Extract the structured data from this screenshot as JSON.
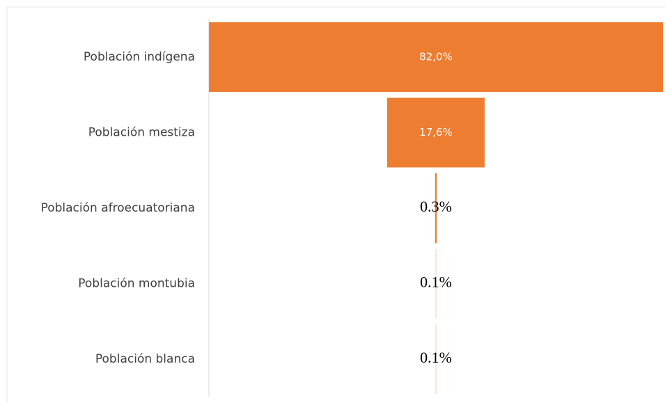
{
  "chart_data": {
    "type": "funnel",
    "categories": [
      "Población indígena",
      "Población mestiza",
      "Población afroecuatoriana",
      "Población montubia",
      "Población blanca"
    ],
    "values": [
      82.0,
      17.6,
      0.3,
      0.1,
      0.1
    ],
    "value_labels": [
      "82,0%",
      "17,6%",
      "0.3%",
      "0.1%",
      "0.1%"
    ],
    "color": "#ed7d31"
  }
}
